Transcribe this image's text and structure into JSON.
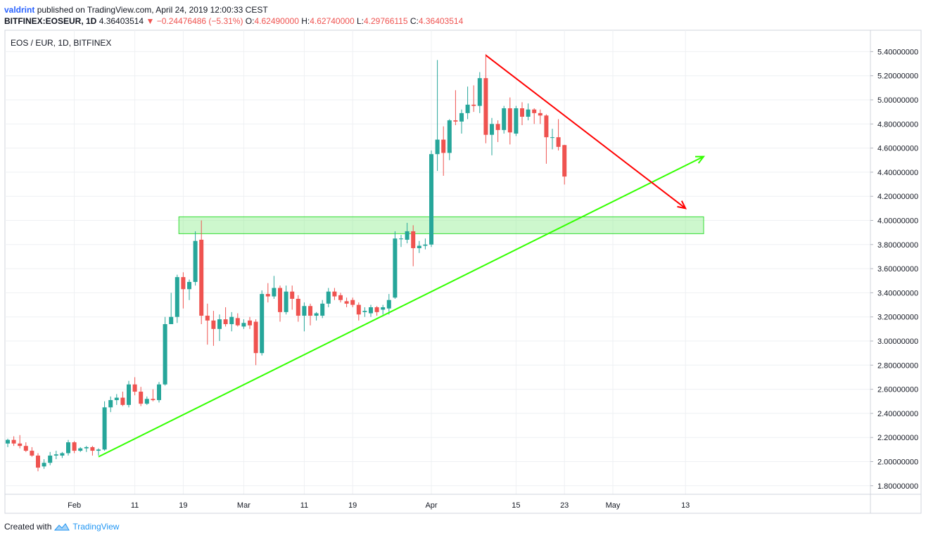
{
  "header": {
    "author": "valdrint",
    "published_text": "published on TradingView.com, April 24, 2019 12:00:33 CEST",
    "symbol": "BITFINEX:EOSEUR, 1D",
    "last": "4.36403514",
    "change": "−0.24476486 (−5.31%)",
    "o_label": "O:",
    "o_value": "4.62490000",
    "h_label": "H:",
    "h_value": "4.62740000",
    "l_label": "L:",
    "l_value": "4.29766115",
    "c_label": "C:",
    "c_value": "4.36403514"
  },
  "footer": {
    "created_with": "Created with",
    "brand": "TradingView"
  },
  "colors": {
    "up": "#26a69a",
    "down": "#ef5350",
    "grid": "#eef0f3",
    "resistance_line": "#ff0000",
    "support_line": "#33ff00",
    "zone_fill": "rgba(144,238,144,0.45)",
    "zone_stroke": "#33dd33"
  },
  "chart_data": {
    "type": "candlestick",
    "title": "EOS / EUR, 1D, BITFINEX",
    "y_axis": {
      "min": 1.7,
      "max": 5.5,
      "ticks": [
        "5.40000000",
        "5.20000000",
        "5.00000000",
        "4.80000000",
        "4.60000000",
        "4.40000000",
        "4.20000000",
        "4.00000000",
        "3.80000000",
        "3.60000000",
        "3.40000000",
        "3.20000000",
        "3.00000000",
        "2.80000000",
        "2.60000000",
        "2.40000000",
        "2.20000000",
        "2.00000000",
        "1.80000000"
      ]
    },
    "x_axis": {
      "start_date": "2019-01-21",
      "end_date": "2019-05-16",
      "ticks": [
        {
          "date": "2019-02-01",
          "label": "Feb"
        },
        {
          "date": "2019-02-11",
          "label": "11"
        },
        {
          "date": "2019-02-19",
          "label": "19"
        },
        {
          "date": "2019-03-01",
          "label": "Mar"
        },
        {
          "date": "2019-03-11",
          "label": "11"
        },
        {
          "date": "2019-03-19",
          "label": "19"
        },
        {
          "date": "2019-04-01",
          "label": "Apr"
        },
        {
          "date": "2019-04-15",
          "label": "15"
        },
        {
          "date": "2019-04-23",
          "label": "23"
        },
        {
          "date": "2019-05-01",
          "label": "May"
        },
        {
          "date": "2019-05-13",
          "label": "13"
        }
      ]
    },
    "candles": [
      {
        "d": "2019-01-21",
        "o": 2.15,
        "h": 2.19,
        "l": 2.12,
        "c": 2.18
      },
      {
        "d": "2019-01-22",
        "o": 2.18,
        "h": 2.21,
        "l": 2.13,
        "c": 2.15
      },
      {
        "d": "2019-01-23",
        "o": 2.15,
        "h": 2.22,
        "l": 2.11,
        "c": 2.13
      },
      {
        "d": "2019-01-24",
        "o": 2.13,
        "h": 2.16,
        "l": 2.08,
        "c": 2.09
      },
      {
        "d": "2019-01-25",
        "o": 2.09,
        "h": 2.12,
        "l": 2.04,
        "c": 2.05
      },
      {
        "d": "2019-01-26",
        "o": 2.05,
        "h": 2.07,
        "l": 1.92,
        "c": 1.95
      },
      {
        "d": "2019-01-27",
        "o": 1.96,
        "h": 2.02,
        "l": 1.94,
        "c": 1.99
      },
      {
        "d": "2019-01-28",
        "o": 1.99,
        "h": 2.08,
        "l": 1.97,
        "c": 2.05
      },
      {
        "d": "2019-01-29",
        "o": 2.05,
        "h": 2.09,
        "l": 2.02,
        "c": 2.06
      },
      {
        "d": "2019-01-30",
        "o": 2.05,
        "h": 2.08,
        "l": 2.03,
        "c": 2.07
      },
      {
        "d": "2019-01-31",
        "o": 2.07,
        "h": 2.18,
        "l": 2.05,
        "c": 2.16
      },
      {
        "d": "2019-02-01",
        "o": 2.16,
        "h": 2.17,
        "l": 2.07,
        "c": 2.09
      },
      {
        "d": "2019-02-02",
        "o": 2.09,
        "h": 2.12,
        "l": 2.08,
        "c": 2.11
      },
      {
        "d": "2019-02-03",
        "o": 2.11,
        "h": 2.13,
        "l": 2.08,
        "c": 2.12
      },
      {
        "d": "2019-02-04",
        "o": 2.12,
        "h": 2.13,
        "l": 2.05,
        "c": 2.09
      },
      {
        "d": "2019-02-05",
        "o": 2.09,
        "h": 2.11,
        "l": 2.05,
        "c": 2.1
      },
      {
        "d": "2019-02-06",
        "o": 2.1,
        "h": 2.5,
        "l": 2.09,
        "c": 2.45
      },
      {
        "d": "2019-02-07",
        "o": 2.45,
        "h": 2.54,
        "l": 2.41,
        "c": 2.51
      },
      {
        "d": "2019-02-08",
        "o": 2.51,
        "h": 2.56,
        "l": 2.47,
        "c": 2.53
      },
      {
        "d": "2019-02-09",
        "o": 2.53,
        "h": 2.58,
        "l": 2.46,
        "c": 2.47
      },
      {
        "d": "2019-02-10",
        "o": 2.47,
        "h": 2.67,
        "l": 2.45,
        "c": 2.64
      },
      {
        "d": "2019-02-11",
        "o": 2.64,
        "h": 2.7,
        "l": 2.55,
        "c": 2.58
      },
      {
        "d": "2019-02-12",
        "o": 2.58,
        "h": 2.62,
        "l": 2.46,
        "c": 2.48
      },
      {
        "d": "2019-02-13",
        "o": 2.48,
        "h": 2.54,
        "l": 2.47,
        "c": 2.52
      },
      {
        "d": "2019-02-14",
        "o": 2.52,
        "h": 2.6,
        "l": 2.5,
        "c": 2.51
      },
      {
        "d": "2019-02-15",
        "o": 2.51,
        "h": 2.66,
        "l": 2.49,
        "c": 2.64
      },
      {
        "d": "2019-02-16",
        "o": 2.64,
        "h": 3.2,
        "l": 2.63,
        "c": 3.14
      },
      {
        "d": "2019-02-17",
        "o": 3.14,
        "h": 3.4,
        "l": 3.14,
        "c": 3.2
      },
      {
        "d": "2019-02-18",
        "o": 3.2,
        "h": 3.55,
        "l": 3.15,
        "c": 3.53
      },
      {
        "d": "2019-02-19",
        "o": 3.53,
        "h": 3.57,
        "l": 3.27,
        "c": 3.43
      },
      {
        "d": "2019-02-20",
        "o": 3.43,
        "h": 3.51,
        "l": 3.34,
        "c": 3.49
      },
      {
        "d": "2019-02-21",
        "o": 3.49,
        "h": 3.91,
        "l": 3.46,
        "c": 3.83
      },
      {
        "d": "2019-02-22",
        "o": 3.84,
        "h": 4.0,
        "l": 3.14,
        "c": 3.21
      },
      {
        "d": "2019-02-23",
        "o": 3.21,
        "h": 3.31,
        "l": 2.97,
        "c": 3.17
      },
      {
        "d": "2019-02-24",
        "o": 3.17,
        "h": 3.25,
        "l": 2.96,
        "c": 3.1
      },
      {
        "d": "2019-02-25",
        "o": 3.1,
        "h": 3.22,
        "l": 3.0,
        "c": 3.18
      },
      {
        "d": "2019-02-26",
        "o": 3.18,
        "h": 3.28,
        "l": 3.12,
        "c": 3.14
      },
      {
        "d": "2019-02-27",
        "o": 3.14,
        "h": 3.24,
        "l": 3.08,
        "c": 3.2
      },
      {
        "d": "2019-02-28",
        "o": 3.19,
        "h": 3.23,
        "l": 3.12,
        "c": 3.13
      },
      {
        "d": "2019-03-01",
        "o": 3.12,
        "h": 3.18,
        "l": 3.1,
        "c": 3.15
      },
      {
        "d": "2019-03-02",
        "o": 3.17,
        "h": 3.2,
        "l": 3.1,
        "c": 3.13
      },
      {
        "d": "2019-03-03",
        "o": 3.16,
        "h": 3.18,
        "l": 2.8,
        "c": 2.9
      },
      {
        "d": "2019-03-04",
        "o": 2.9,
        "h": 3.42,
        "l": 2.88,
        "c": 3.39
      },
      {
        "d": "2019-03-05",
        "o": 3.39,
        "h": 3.48,
        "l": 3.32,
        "c": 3.37
      },
      {
        "d": "2019-03-06",
        "o": 3.37,
        "h": 3.54,
        "l": 3.35,
        "c": 3.44
      },
      {
        "d": "2019-03-07",
        "o": 3.44,
        "h": 3.46,
        "l": 3.16,
        "c": 3.24
      },
      {
        "d": "2019-03-08",
        "o": 3.24,
        "h": 3.46,
        "l": 3.22,
        "c": 3.41
      },
      {
        "d": "2019-03-09",
        "o": 3.41,
        "h": 3.46,
        "l": 3.26,
        "c": 3.35
      },
      {
        "d": "2019-03-10",
        "o": 3.35,
        "h": 3.38,
        "l": 3.16,
        "c": 3.21
      },
      {
        "d": "2019-03-11",
        "o": 3.21,
        "h": 3.32,
        "l": 3.08,
        "c": 3.29
      },
      {
        "d": "2019-03-12",
        "o": 3.29,
        "h": 3.31,
        "l": 3.13,
        "c": 3.21
      },
      {
        "d": "2019-03-13",
        "o": 3.21,
        "h": 3.24,
        "l": 3.17,
        "c": 3.23
      },
      {
        "d": "2019-03-14",
        "o": 3.21,
        "h": 3.34,
        "l": 3.19,
        "c": 3.31
      },
      {
        "d": "2019-03-15",
        "o": 3.31,
        "h": 3.44,
        "l": 3.28,
        "c": 3.41
      },
      {
        "d": "2019-03-16",
        "o": 3.41,
        "h": 3.44,
        "l": 3.34,
        "c": 3.37
      },
      {
        "d": "2019-03-17",
        "o": 3.38,
        "h": 3.4,
        "l": 3.32,
        "c": 3.34
      },
      {
        "d": "2019-03-18",
        "o": 3.33,
        "h": 3.36,
        "l": 3.28,
        "c": 3.31
      },
      {
        "d": "2019-03-19",
        "o": 3.34,
        "h": 3.36,
        "l": 3.28,
        "c": 3.3
      },
      {
        "d": "2019-03-20",
        "o": 3.3,
        "h": 3.32,
        "l": 3.17,
        "c": 3.22
      },
      {
        "d": "2019-03-21",
        "o": 3.24,
        "h": 3.28,
        "l": 3.2,
        "c": 3.25
      },
      {
        "d": "2019-03-22",
        "o": 3.23,
        "h": 3.3,
        "l": 3.2,
        "c": 3.28
      },
      {
        "d": "2019-03-23",
        "o": 3.28,
        "h": 3.29,
        "l": 3.21,
        "c": 3.24
      },
      {
        "d": "2019-03-24",
        "o": 3.26,
        "h": 3.3,
        "l": 3.22,
        "c": 3.28
      },
      {
        "d": "2019-03-25",
        "o": 3.27,
        "h": 3.39,
        "l": 3.22,
        "c": 3.34
      },
      {
        "d": "2019-03-26",
        "o": 3.36,
        "h": 3.91,
        "l": 3.35,
        "c": 3.85
      },
      {
        "d": "2019-03-27",
        "o": 3.85,
        "h": 3.88,
        "l": 3.78,
        "c": 3.85
      },
      {
        "d": "2019-03-28",
        "o": 3.84,
        "h": 3.98,
        "l": 3.81,
        "c": 3.91
      },
      {
        "d": "2019-03-29",
        "o": 3.91,
        "h": 3.96,
        "l": 3.62,
        "c": 3.77
      },
      {
        "d": "2019-03-30",
        "o": 3.77,
        "h": 3.83,
        "l": 3.73,
        "c": 3.79
      },
      {
        "d": "2019-03-31",
        "o": 3.79,
        "h": 3.85,
        "l": 3.76,
        "c": 3.8
      },
      {
        "d": "2019-04-01",
        "o": 3.8,
        "h": 4.58,
        "l": 3.78,
        "c": 4.55
      },
      {
        "d": "2019-04-02",
        "o": 4.55,
        "h": 5.33,
        "l": 4.41,
        "c": 4.67
      },
      {
        "d": "2019-04-03",
        "o": 4.67,
        "h": 4.78,
        "l": 4.37,
        "c": 4.56
      },
      {
        "d": "2019-04-04",
        "o": 4.56,
        "h": 4.84,
        "l": 4.5,
        "c": 4.83
      },
      {
        "d": "2019-04-05",
        "o": 4.83,
        "h": 5.08,
        "l": 4.79,
        "c": 4.82
      },
      {
        "d": "2019-04-06",
        "o": 4.82,
        "h": 4.92,
        "l": 4.72,
        "c": 4.89
      },
      {
        "d": "2019-04-07",
        "o": 4.89,
        "h": 5.11,
        "l": 4.84,
        "c": 4.96
      },
      {
        "d": "2019-04-08",
        "o": 4.96,
        "h": 5.12,
        "l": 4.9,
        "c": 4.95
      },
      {
        "d": "2019-04-09",
        "o": 4.95,
        "h": 5.23,
        "l": 4.89,
        "c": 5.18
      },
      {
        "d": "2019-04-10",
        "o": 5.18,
        "h": 5.38,
        "l": 4.64,
        "c": 4.71
      },
      {
        "d": "2019-04-11",
        "o": 4.71,
        "h": 4.85,
        "l": 4.54,
        "c": 4.8
      },
      {
        "d": "2019-04-12",
        "o": 4.8,
        "h": 4.83,
        "l": 4.65,
        "c": 4.75
      },
      {
        "d": "2019-04-13",
        "o": 4.75,
        "h": 4.95,
        "l": 4.72,
        "c": 4.93
      },
      {
        "d": "2019-04-14",
        "o": 4.93,
        "h": 5.02,
        "l": 4.63,
        "c": 4.73
      },
      {
        "d": "2019-04-15",
        "o": 4.72,
        "h": 4.95,
        "l": 4.7,
        "c": 4.93
      },
      {
        "d": "2019-04-16",
        "o": 4.93,
        "h": 4.98,
        "l": 4.79,
        "c": 4.86
      },
      {
        "d": "2019-04-17",
        "o": 4.86,
        "h": 4.97,
        "l": 4.83,
        "c": 4.92
      },
      {
        "d": "2019-04-18",
        "o": 4.92,
        "h": 4.93,
        "l": 4.8,
        "c": 4.89
      },
      {
        "d": "2019-04-19",
        "o": 4.89,
        "h": 4.92,
        "l": 4.8,
        "c": 4.87
      },
      {
        "d": "2019-04-20",
        "o": 4.87,
        "h": 4.88,
        "l": 4.47,
        "c": 4.69
      },
      {
        "d": "2019-04-21",
        "o": 4.69,
        "h": 4.76,
        "l": 4.59,
        "c": 4.69
      },
      {
        "d": "2019-04-22",
        "o": 4.69,
        "h": 4.84,
        "l": 4.58,
        "c": 4.61
      },
      {
        "d": "2019-04-23",
        "o": 4.6249,
        "h": 4.6274,
        "l": 4.29766115,
        "c": 4.36403514
      }
    ],
    "annotations": {
      "resistance_line": {
        "from": {
          "d": "2019-04-10",
          "y": 5.37
        },
        "to": {
          "d": "2019-05-13",
          "y": 4.1
        }
      },
      "support_line": {
        "from": {
          "d": "2019-02-05",
          "y": 2.04
        },
        "to": {
          "d": "2019-05-16",
          "y": 4.53
        }
      },
      "zone": {
        "from_d": "2019-02-22",
        "to_d": "2019-05-16",
        "y_low": 3.89,
        "y_high": 4.03
      }
    }
  }
}
